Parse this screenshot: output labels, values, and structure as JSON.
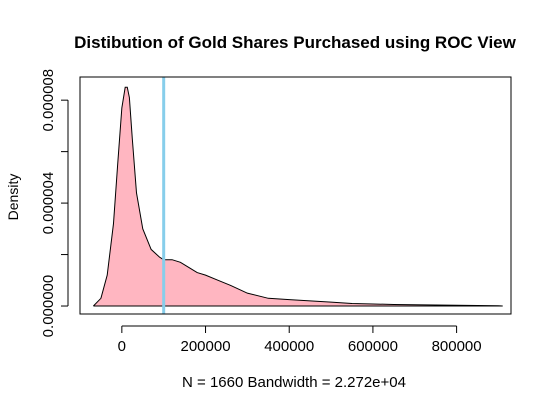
{
  "chart_data": {
    "type": "area",
    "title": "Distibution of Gold Shares Purchased using ROC View",
    "xlabel": "N = 1660   Bandwidth = 2.272e+04",
    "ylabel": "Density",
    "xlim": [
      -100000,
      930000
    ],
    "ylim": [
      -3.1e-07,
      8.9e-06
    ],
    "x_ticks": [
      0,
      200000,
      400000,
      600000,
      800000
    ],
    "x_tick_labels": [
      "0",
      "200000",
      "400000",
      "600000",
      "800000"
    ],
    "y_ticks": [
      0,
      2e-06,
      4e-06,
      6e-06,
      8e-06
    ],
    "y_tick_labels": [
      "0.000000",
      "",
      "0.000004",
      "",
      "0.000008"
    ],
    "series": [
      {
        "x": [
          -68000,
          -50000,
          -35000,
          -20000,
          -10000,
          0,
          8000,
          13000,
          18000,
          25000,
          35000,
          50000,
          70000,
          90000,
          100000,
          120000,
          140000,
          160000,
          180000,
          200000,
          230000,
          260000,
          300000,
          350000,
          400000,
          450000,
          500000,
          550000,
          600000,
          650000,
          700000,
          750000,
          800000,
          850000,
          900000,
          910000
        ],
        "y": [
          0.0,
          3e-07,
          1.2e-06,
          3.2e-06,
          5.5e-06,
          7.7e-06,
          8.5e-06,
          8.5e-06,
          8.1e-06,
          6.5e-06,
          4.4e-06,
          3e-06,
          2.2e-06,
          1.9e-06,
          1.8e-06,
          1.8e-06,
          1.7e-06,
          1.5e-06,
          1.3e-06,
          1.2e-06,
          1e-06,
          8e-07,
          5e-07,
          3e-07,
          2.5e-07,
          2e-07,
          1.5e-07,
          1e-07,
          8e-08,
          6e-08,
          5e-08,
          4e-08,
          3e-08,
          2e-08,
          1e-08,
          0.0
        ]
      }
    ],
    "vline": 100000,
    "colors": {
      "fill": "#ffb6c1",
      "line": "#000000",
      "vline": "#87ceeb"
    },
    "grid": false,
    "legend": "none"
  }
}
